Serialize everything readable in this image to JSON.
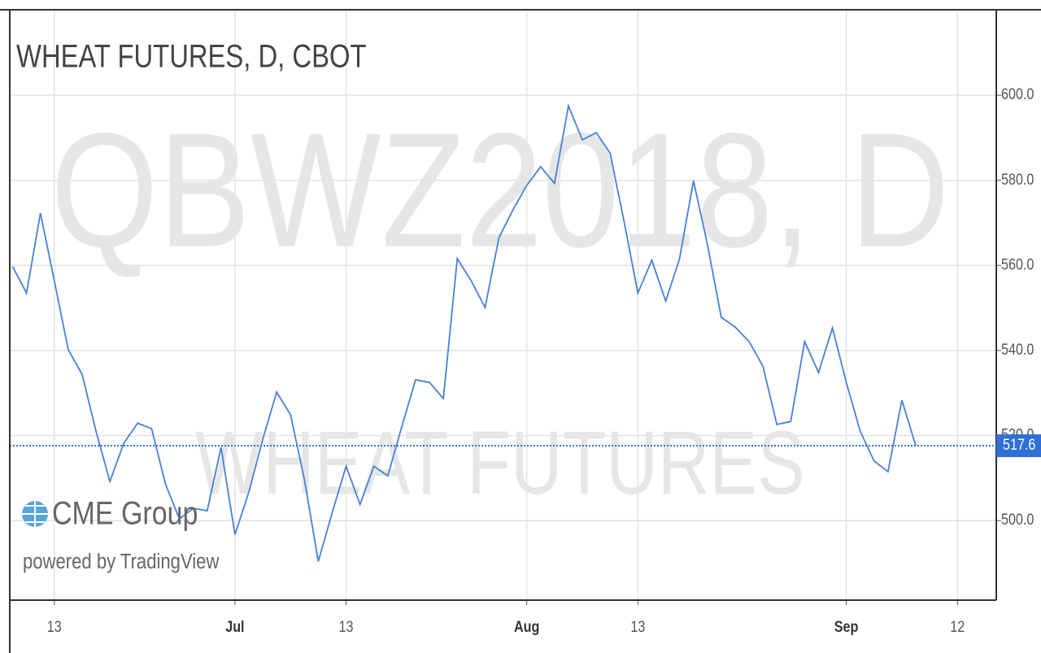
{
  "chart_data": {
    "type": "line",
    "title": "WHEAT FUTURES, D, CBOT",
    "watermark": [
      "QBWZ2018, D",
      "WHEAT FUTURES"
    ],
    "logo": "CME Group",
    "credit": "powered by TradingView",
    "categories": [
      null,
      null,
      null,
      "13",
      null,
      null,
      null,
      null,
      null,
      null,
      null,
      null,
      null,
      null,
      null,
      null,
      "Jul",
      null,
      null,
      null,
      null,
      null,
      null,
      null,
      "13",
      null,
      null,
      null,
      null,
      null,
      null,
      null,
      null,
      null,
      null,
      null,
      null,
      "Aug",
      null,
      null,
      null,
      null,
      null,
      null,
      null,
      "13",
      null,
      null,
      null,
      null,
      null,
      null,
      null,
      null,
      null,
      null,
      null,
      null,
      null,
      null,
      "Sep",
      null,
      null,
      null,
      null,
      null,
      null,
      null,
      "12",
      null,
      null
    ],
    "series": [
      {
        "name": "QBWZ2018",
        "color": "#4a7fd8",
        "values": [
          559.7,
          553.5,
          572.3,
          556.4,
          540.2,
          534.4,
          521.0,
          509.2,
          518.2,
          522.9,
          521.6,
          508.6,
          500.4,
          502.9,
          502.3,
          517.2,
          496.7,
          506.7,
          519.1,
          530.2,
          524.9,
          509.6,
          490.4,
          501.9,
          512.8,
          503.8,
          512.8,
          510.5,
          522.0,
          533.1,
          532.5,
          528.7,
          561.6,
          556.4,
          550.1,
          566.5,
          573.0,
          578.8,
          583.2,
          579.3,
          597.5,
          589.5,
          591.2,
          586.4,
          570.4,
          553.5,
          561.2,
          551.6,
          561.6,
          579.9,
          565.0,
          547.8,
          545.5,
          542.1,
          536.3,
          522.6,
          523.3,
          542.1,
          534.8,
          545.3,
          532.5,
          521.0,
          514.0,
          511.5,
          528.3,
          517.6,
          null,
          null,
          null,
          null,
          null
        ]
      }
    ],
    "ylim": [
      481.3,
      620.1
    ],
    "yticks": [
      {
        "value": 500,
        "label": "500.0"
      },
      {
        "value": 520,
        "label": "520.0"
      },
      {
        "value": 540,
        "label": "540.0"
      },
      {
        "value": 560,
        "label": "560.0"
      },
      {
        "value": 580,
        "label": "580.0"
      },
      {
        "value": 600,
        "label": "600.0"
      }
    ],
    "grid": true,
    "last_price_color": "#2f6fd6"
  }
}
